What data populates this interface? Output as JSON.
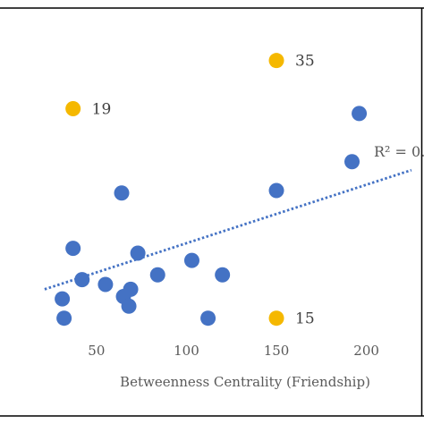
{
  "chart_data": {
    "type": "scatter",
    "title": "",
    "xlabel": "Betweenness Centrality (Friendship)",
    "ylabel": "",
    "xlim": [
      -3.6,
      232
    ],
    "ylim": [
      -0.06,
      12.98
    ],
    "x_ticks": [
      "50",
      "100",
      "150",
      "200"
    ],
    "grid": false,
    "legend": "none",
    "colors": {
      "regular": "#4472c4",
      "highlight": "#f5b800",
      "trend": "#4472c4",
      "frame": "#000000"
    },
    "series": [
      {
        "points": [
          {
            "x": 32,
            "y": 0.1
          },
          {
            "x": 37,
            "y": 3.0
          },
          {
            "x": 42,
            "y": 1.7
          },
          {
            "x": 31,
            "y": 0.9
          },
          {
            "x": 55,
            "y": 1.5
          },
          {
            "x": 64,
            "y": 5.3
          },
          {
            "x": 65,
            "y": 1.0
          },
          {
            "x": 68,
            "y": 0.6
          },
          {
            "x": 69,
            "y": 1.3
          },
          {
            "x": 73,
            "y": 2.8
          },
          {
            "x": 84,
            "y": 1.9
          },
          {
            "x": 103,
            "y": 2.5
          },
          {
            "x": 112,
            "y": 0.1
          },
          {
            "x": 120,
            "y": 1.9
          },
          {
            "x": 150,
            "y": 5.4
          },
          {
            "x": 192,
            "y": 6.6
          },
          {
            "x": 196,
            "y": 8.6
          }
        ]
      },
      {
        "points": [
          {
            "x": 37,
            "y": 8.8,
            "label": "19"
          },
          {
            "x": 150,
            "y": 10.8,
            "label": "35"
          },
          {
            "x": 150,
            "y": 0.1,
            "label": "15"
          }
        ]
      }
    ],
    "trendline": {
      "x_start": 21.2,
      "y_start": 1.3,
      "x_end": 225,
      "y_end": 6.25,
      "r_squared_label": "R² = 0."
    }
  }
}
